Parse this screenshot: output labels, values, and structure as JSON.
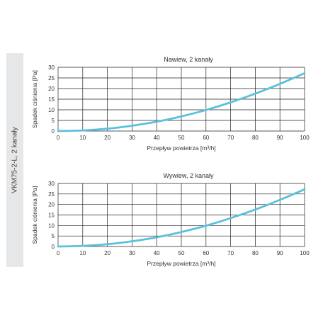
{
  "side_label": "VKM75-2-L, 2 kanały",
  "chart_data": [
    {
      "type": "line",
      "title": "Nawiew, 2 kanały",
      "xlabel": "Przepływ powietrza [m³/h]",
      "ylabel": "Spadek ciśnienia [Pa]",
      "xlim": [
        0,
        100
      ],
      "ylim": [
        0,
        30
      ],
      "xticks": [
        0,
        10,
        20,
        30,
        40,
        50,
        60,
        70,
        80,
        90,
        100
      ],
      "yticks": [
        0,
        5,
        10,
        15,
        20,
        25,
        30
      ],
      "grid": true,
      "series": [
        {
          "color": "#5bc0de",
          "x": [
            0,
            10,
            20,
            30,
            40,
            50,
            60,
            70,
            80,
            90,
            100
          ],
          "y": [
            0,
            0.3,
            1.1,
            2.5,
            4.4,
            6.9,
            9.9,
            13.5,
            17.6,
            22.2,
            27.2
          ]
        }
      ]
    },
    {
      "type": "line",
      "title": "Wywiew, 2 kanały",
      "xlabel": "Przepływ powietrza [m³/h]",
      "ylabel": "Spadek ciśnienia [Pa]",
      "xlim": [
        0,
        100
      ],
      "ylim": [
        0,
        30
      ],
      "xticks": [
        0,
        10,
        20,
        30,
        40,
        50,
        60,
        70,
        80,
        90,
        100
      ],
      "yticks": [
        0,
        5,
        10,
        15,
        20,
        25,
        30
      ],
      "grid": true,
      "series": [
        {
          "color": "#5bc0de",
          "x": [
            0,
            10,
            20,
            30,
            40,
            50,
            60,
            70,
            80,
            90,
            100
          ],
          "y": [
            0,
            0.3,
            1.1,
            2.5,
            4.4,
            6.9,
            9.9,
            13.5,
            17.6,
            22.2,
            27.2
          ]
        }
      ]
    }
  ]
}
